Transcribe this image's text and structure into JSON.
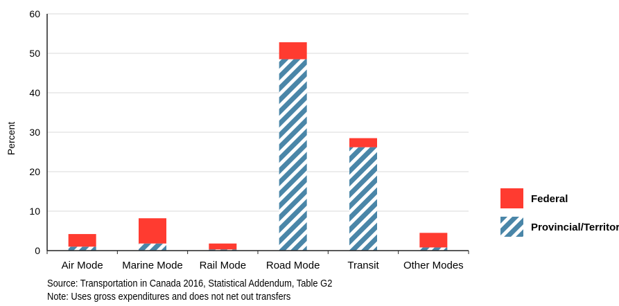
{
  "chart_data": {
    "type": "bar",
    "stacked": true,
    "categories": [
      "Air Mode",
      "Marine Mode",
      "Rail Mode",
      "Road Mode",
      "Transit",
      "Other Modes"
    ],
    "series": [
      {
        "name": "Provincial/Territorial",
        "pattern": "diagonal-stripes",
        "color": "#4a86a8",
        "values": [
          1,
          1.8,
          0.3,
          48.5,
          26.2,
          0.8
        ]
      },
      {
        "name": "Federal",
        "color": "#ff3b30",
        "values": [
          3.2,
          6.4,
          1.5,
          4.3,
          2.3,
          3.7
        ]
      }
    ],
    "ylabel": "Percent",
    "ylim": [
      0,
      60
    ],
    "yticks": [
      0,
      10,
      20,
      30,
      40,
      50,
      60
    ],
    "grid": true,
    "legend_position": "right"
  },
  "notes": {
    "source": "Source: Transportation in Canada 2016, Statistical Addendum, Table G2",
    "note": "Note: Uses gross expenditures and does not net out transfers"
  },
  "colors": {
    "federal": "#ff3b30",
    "provincial_stripe": "#4a86a8",
    "grid": "#d9d9d9",
    "axis": "#222222"
  }
}
